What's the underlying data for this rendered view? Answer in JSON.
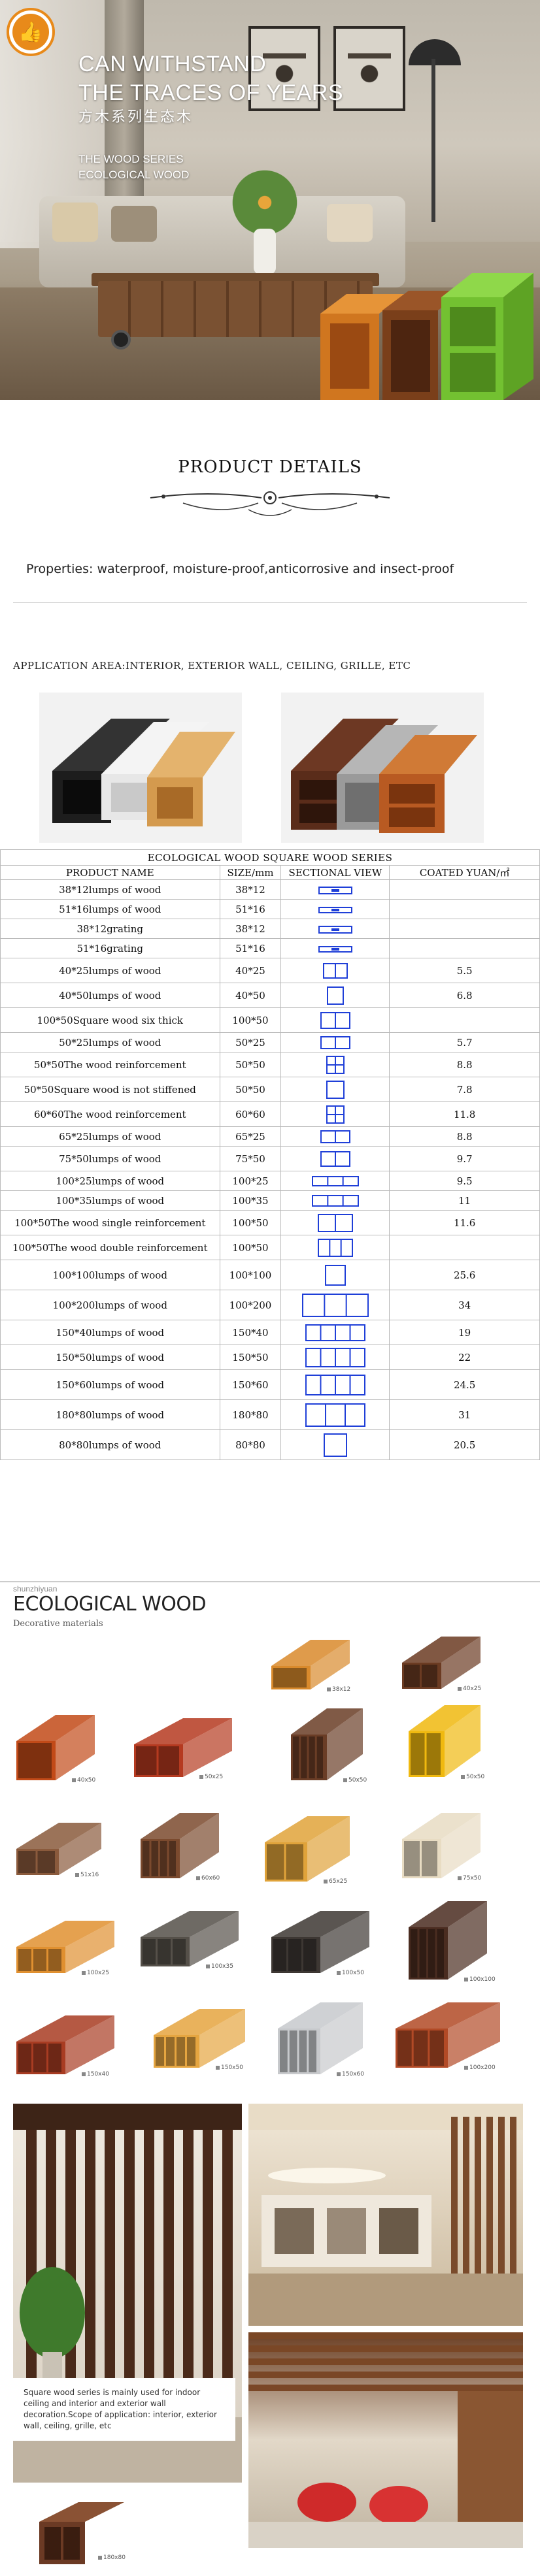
{
  "hero": {
    "title_line1": "CAN WITHSTAND",
    "title_line2": "THE TRACES OF YEARS",
    "title_cn": "方木系列生态木",
    "sub_line1": "THE WOOD SERIES",
    "sub_line2": "ECOLOGICAL WOOD",
    "badge_icon": "thumbs-up-icon",
    "badge_color": "#e88a1a"
  },
  "details": {
    "title": "PRODUCT DETAILS",
    "properties": "Properties: waterproof, moisture-proof,anticorrosive and insect-proof",
    "application": "APPLICATION AREA:INTERIOR, EXTERIOR WALL, CEILING, GRILLE, ETC"
  },
  "table": {
    "caption": "ECOLOGICAL WOOD SQUARE WOOD SERIES",
    "headers": [
      "PRODUCT NAME",
      "SIZE/mm",
      "SECTIONAL VIEW",
      "COATED YUAN/㎡"
    ],
    "rows": [
      {
        "name": "38*12lumps of wood",
        "size": "38*12",
        "price": "",
        "cells": 1,
        "w": 50,
        "h": 10
      },
      {
        "name": "51*16lumps of wood",
        "size": "51*16",
        "price": "",
        "cells": 1,
        "w": 50,
        "h": 8
      },
      {
        "name": "38*12grating",
        "size": "38*12",
        "price": "",
        "cells": 1,
        "w": 50,
        "h": 10
      },
      {
        "name": "51*16grating",
        "size": "51*16",
        "price": "",
        "cells": 1,
        "w": 50,
        "h": 8
      },
      {
        "name": "40*25lumps of wood",
        "size": "40*25",
        "price": "5.5",
        "cells": 2,
        "w": 36,
        "h": 22
      },
      {
        "name": "40*50lumps of wood",
        "size": "40*50",
        "price": "6.8",
        "cells": 1,
        "w": 24,
        "h": 26
      },
      {
        "name": "100*50Square wood six thick",
        "size": "100*50",
        "price": "",
        "cells": 2,
        "w": 44,
        "h": 24
      },
      {
        "name": "50*25lumps of wood",
        "size": "50*25",
        "price": "5.7",
        "cells": 2,
        "w": 44,
        "h": 18
      },
      {
        "name": "50*50The wood reinforcement",
        "size": "50*50",
        "price": "8.8",
        "cells": 4,
        "w": 26,
        "h": 26
      },
      {
        "name": "50*50Square wood is not stiffened",
        "size": "50*50",
        "price": "7.8",
        "cells": 1,
        "w": 26,
        "h": 26
      },
      {
        "name": "60*60The wood reinforcement",
        "size": "60*60",
        "price": "11.8",
        "cells": 4,
        "w": 26,
        "h": 26
      },
      {
        "name": "65*25lumps of wood",
        "size": "65*25",
        "price": "8.8",
        "cells": 2,
        "w": 44,
        "h": 18
      },
      {
        "name": "75*50lumps of wood",
        "size": "75*50",
        "price": "9.7",
        "cells": 2,
        "w": 44,
        "h": 22
      },
      {
        "name": "100*25lumps of wood",
        "size": "100*25",
        "price": "9.5",
        "cells": 3,
        "w": 70,
        "h": 14
      },
      {
        "name": "100*35lumps of wood",
        "size": "100*35",
        "price": "11",
        "cells": 3,
        "w": 70,
        "h": 16
      },
      {
        "name": "100*50The wood single reinforcement",
        "size": "100*50",
        "price": "11.6",
        "cells": 2,
        "w": 52,
        "h": 26
      },
      {
        "name": "100*50The wood double reinforcement",
        "size": "100*50",
        "price": "",
        "cells": 3,
        "w": 52,
        "h": 26
      },
      {
        "name": "100*100lumps of wood",
        "size": "100*100",
        "price": "25.6",
        "cells": 1,
        "w": 30,
        "h": 30
      },
      {
        "name": "100*200lumps of wood",
        "size": "100*200",
        "price": "34",
        "cells": 3,
        "w": 100,
        "h": 34
      },
      {
        "name": "150*40lumps of wood",
        "size": "150*40",
        "price": "19",
        "cells": 4,
        "w": 90,
        "h": 24
      },
      {
        "name": "150*50lumps of wood",
        "size": "150*50",
        "price": "22",
        "cells": 4,
        "w": 90,
        "h": 28
      },
      {
        "name": "150*60lumps of wood",
        "size": "150*60",
        "price": "24.5",
        "cells": 4,
        "w": 90,
        "h": 30
      },
      {
        "name": "180*80lumps of wood",
        "size": "180*80",
        "price": "31",
        "cells": 3,
        "w": 90,
        "h": 34
      },
      {
        "name": "80*80lumps of wood",
        "size": "80*80",
        "price": "20.5",
        "cells": 1,
        "w": 34,
        "h": 34
      }
    ]
  },
  "catalog": {
    "brand_small": "shunzhiyuan",
    "brand_big": "ECOLOGICAL WOOD",
    "brand_desc": "Decorative materials",
    "items": [
      {
        "label": "38x12",
        "color": "#d98a2c"
      },
      {
        "label": "40x25",
        "color": "#6b3b22"
      },
      {
        "label": "40x50",
        "color": "#c24a18"
      },
      {
        "label": "50x25",
        "color": "#b53a20"
      },
      {
        "label": "50x50",
        "color": "#6a3d26"
      },
      {
        "label": "50x50",
        "color": "#f0b90f"
      },
      {
        "label": "51x16",
        "color": "#8a5a3c"
      },
      {
        "label": "60x60",
        "color": "#7b4a2e"
      },
      {
        "label": "65x25",
        "color": "#e0a33a"
      },
      {
        "label": "75x50",
        "color": "#e8dcc3"
      },
      {
        "label": "100x25",
        "color": "#e09030"
      },
      {
        "label": "100x35",
        "color": "#555049"
      },
      {
        "label": "100x50",
        "color": "#3d3733"
      },
      {
        "label": "100x100",
        "color": "#4a2c20"
      },
      {
        "label": "150x40",
        "color": "#a83c22"
      },
      {
        "label": "150x50",
        "color": "#e5a540"
      },
      {
        "label": "150x60",
        "color": "#c7c9cc"
      },
      {
        "label": "100x200",
        "color": "#b24a26"
      },
      {
        "label": "180x80",
        "color": "#6b3a24"
      }
    ]
  },
  "gallery": {
    "note": "Square wood series is mainly used for indoor ceiling and interior and exterior wall decoration.Scope of application: interior, exterior wall, ceiling, grille, etc"
  }
}
